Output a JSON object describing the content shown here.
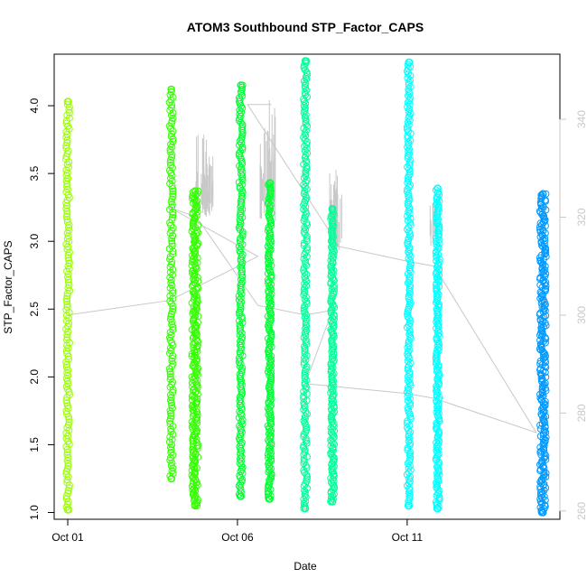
{
  "chart_data": {
    "type": "scatter",
    "title": "ATOM3 Southbound STP_Factor_CAPS",
    "xlabel": "Date",
    "ylabel": "STP_Factor_CAPS",
    "x_ticks": [
      "Oct 01",
      "Oct 06",
      "Oct 11"
    ],
    "x_tick_values": [
      1,
      6,
      11
    ],
    "xlim": [
      0.6,
      15.5
    ],
    "ylim": [
      0.95,
      4.38
    ],
    "y_ticks": [
      1.0,
      1.5,
      2.0,
      2.5,
      3.0,
      3.5,
      4.0
    ],
    "y_tick_labels": [
      "1.0",
      "1.5",
      "2.0",
      "2.5",
      "3.0",
      "3.5",
      "4.0"
    ],
    "y2_ticks": [
      260,
      280,
      300,
      320,
      340
    ],
    "y2_tick_labels": [
      "260",
      "280",
      "300",
      "320",
      "340"
    ],
    "y2lim": [
      258.3,
      353.3
    ],
    "grid": false,
    "legend": "none",
    "series": [
      {
        "color": "#99ff00",
        "clusters": [
          {
            "x": 1.0,
            "ymin": 1.02,
            "ymax": 4.03,
            "density": "sparse"
          }
        ]
      },
      {
        "color": "#33ff00",
        "clusters": [
          {
            "x": 4.05,
            "ymin": 1.25,
            "ymax": 4.12,
            "density": "sparse"
          },
          {
            "x": 4.75,
            "ymin": 1.05,
            "ymax": 3.37,
            "density": "dense"
          }
        ]
      },
      {
        "color": "#00ff33",
        "clusters": [
          {
            "x": 6.1,
            "ymin": 1.12,
            "ymax": 4.15,
            "density": "medium"
          },
          {
            "x": 6.95,
            "ymin": 1.1,
            "ymax": 3.43,
            "density": "medium"
          }
        ]
      },
      {
        "color": "#00ff99",
        "clusters": [
          {
            "x": 8.0,
            "ymin": 1.03,
            "ymax": 4.33,
            "density": "medium"
          },
          {
            "x": 8.8,
            "ymin": 1.08,
            "ymax": 3.24,
            "density": "medium"
          }
        ]
      },
      {
        "color": "#00ffff",
        "clusters": [
          {
            "x": 11.05,
            "ymin": 1.05,
            "ymax": 4.32,
            "density": "medium"
          },
          {
            "x": 11.9,
            "ymin": 1.03,
            "ymax": 3.39,
            "density": "medium"
          }
        ]
      },
      {
        "color": "#0099ff",
        "clusters": [
          {
            "x": 15.0,
            "ymin": 1.0,
            "ymax": 3.35,
            "density": "dense"
          }
        ]
      }
    ],
    "secondary_series": {
      "color": "#c8c8c8",
      "axis": "right",
      "type": "line",
      "points": [
        [
          1.0,
          300
        ],
        [
          4.0,
          303
        ],
        [
          6.6,
          312
        ],
        [
          4.0,
          322
        ],
        [
          4.8,
          320
        ],
        [
          6.6,
          302
        ],
        [
          8.0,
          300
        ],
        [
          8.8,
          301
        ],
        [
          8.0,
          286
        ],
        [
          11.0,
          284
        ],
        [
          11.8,
          283
        ],
        [
          14.8,
          276
        ],
        [
          11.8,
          310
        ],
        [
          11.0,
          311
        ],
        [
          9.0,
          314
        ],
        [
          6.3,
          343
        ],
        [
          7.0,
          343
        ]
      ],
      "spikes": [
        {
          "x": 4.9,
          "ymin": 320,
          "ymax": 337
        },
        {
          "x": 5.05,
          "ymin": 320,
          "ymax": 336
        },
        {
          "x": 5.2,
          "ymin": 320,
          "ymax": 333
        },
        {
          "x": 6.8,
          "ymin": 319,
          "ymax": 339
        },
        {
          "x": 7.0,
          "ymin": 319,
          "ymax": 344
        },
        {
          "x": 8.85,
          "ymin": 313,
          "ymax": 330
        },
        {
          "x": 8.95,
          "ymin": 313,
          "ymax": 328
        },
        {
          "x": 11.8,
          "ymin": 314,
          "ymax": 324
        }
      ]
    }
  }
}
